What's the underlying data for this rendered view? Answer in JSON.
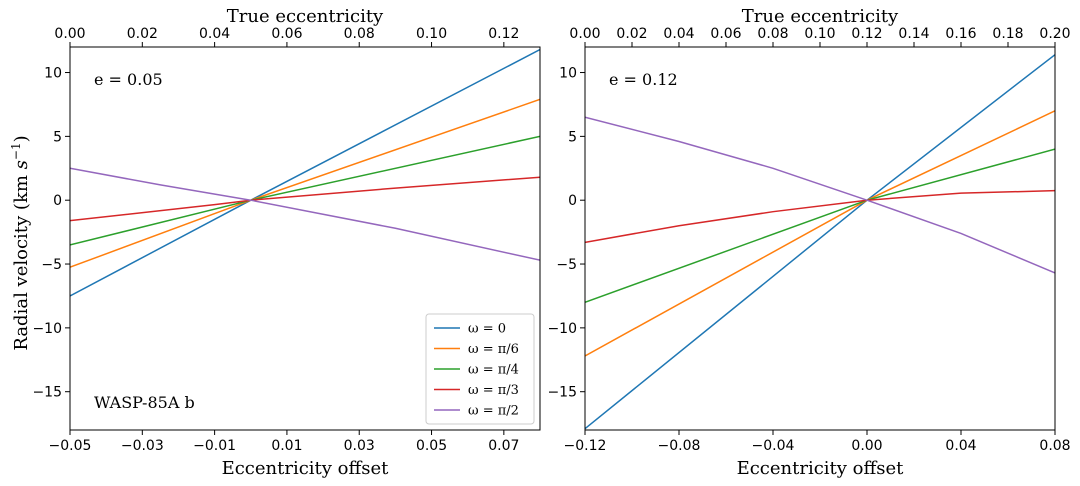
{
  "figure": {
    "ylabel_main": "Radial velocity (km ",
    "ylabel_unit": "s",
    "ylabel_exp": "−1",
    "ylabel_close": ")"
  },
  "chart_data": [
    {
      "type": "line",
      "annotation": "e = 0.05",
      "planet_label": "WASP-85A b",
      "xlabel": "Eccentricity offset",
      "top_xlabel": "True eccentricity",
      "xlim": [
        -0.05,
        0.08
      ],
      "ylim": [
        -18,
        12
      ],
      "top_xlim": [
        0.0,
        0.13
      ],
      "xticks": [
        -0.05,
        -0.03,
        -0.01,
        0.01,
        0.03,
        0.05,
        0.07
      ],
      "xtick_labels": [
        "−0.05",
        "−0.03",
        "−0.01",
        "0.01",
        "0.03",
        "0.05",
        "0.07"
      ],
      "yticks": [
        -15,
        -10,
        -5,
        0,
        5,
        10
      ],
      "ytick_labels": [
        "−15",
        "−10",
        "−5",
        "0",
        "5",
        "10"
      ],
      "top_xticks": [
        0.0,
        0.02,
        0.04,
        0.06,
        0.08,
        0.1,
        0.12
      ],
      "top_xtick_labels": [
        "0.00",
        "0.02",
        "0.04",
        "0.06",
        "0.08",
        "0.10",
        "0.12"
      ],
      "series": [
        {
          "name": "ω = 0",
          "color": "#1f77b4",
          "x": [
            -0.05,
            0.0,
            0.08
          ],
          "y": [
            -7.5,
            0,
            11.8
          ]
        },
        {
          "name": "ω = π/6",
          "color": "#ff7f0e",
          "x": [
            -0.05,
            0.0,
            0.08
          ],
          "y": [
            -5.25,
            0,
            7.9
          ]
        },
        {
          "name": "ω = π/4",
          "color": "#2ca02c",
          "x": [
            -0.05,
            0.0,
            0.08
          ],
          "y": [
            -3.5,
            0,
            5.0
          ]
        },
        {
          "name": "ω = π/3",
          "color": "#d62728",
          "x": [
            -0.05,
            -0.01,
            0.0,
            0.04,
            0.08
          ],
          "y": [
            -1.6,
            -0.35,
            0,
            0.95,
            1.8
          ]
        },
        {
          "name": "ω = π/2",
          "color": "#9467bd",
          "x": [
            -0.05,
            -0.025,
            0.0,
            0.04,
            0.08
          ],
          "y": [
            2.5,
            1.2,
            0,
            -2.2,
            -4.7
          ]
        }
      ],
      "legend": {
        "position": "lower-right",
        "entries": [
          "ω = 0",
          "ω = π/6",
          "ω = π/4",
          "ω = π/3",
          "ω = π/2"
        ]
      }
    },
    {
      "type": "line",
      "annotation": "e = 0.12",
      "xlabel": "Eccentricity offset",
      "top_xlabel": "True eccentricity",
      "xlim": [
        -0.12,
        0.08
      ],
      "ylim": [
        -18,
        12
      ],
      "top_xlim": [
        0.0,
        0.2
      ],
      "xticks": [
        -0.12,
        -0.08,
        -0.04,
        0.0,
        0.04,
        0.08
      ],
      "xtick_labels": [
        "−0.12",
        "−0.08",
        "−0.04",
        "0.00",
        "0.04",
        "0.08"
      ],
      "yticks": [
        -15,
        -10,
        -5,
        0,
        5,
        10
      ],
      "ytick_labels": [
        "−15",
        "−10",
        "−5",
        "0",
        "5",
        "10"
      ],
      "top_xticks": [
        0.0,
        0.02,
        0.04,
        0.06,
        0.08,
        0.1,
        0.12,
        0.14,
        0.16,
        0.18,
        0.2
      ],
      "top_xtick_labels": [
        "0.00",
        "0.02",
        "0.04",
        "0.06",
        "0.08",
        "0.10",
        "0.12",
        "0.14",
        "0.16",
        "0.18",
        "0.20"
      ],
      "series": [
        {
          "name": "ω = 0",
          "color": "#1f77b4",
          "x": [
            -0.12,
            0.0,
            0.08
          ],
          "y": [
            -17.9,
            0,
            11.4
          ]
        },
        {
          "name": "ω = π/6",
          "color": "#ff7f0e",
          "x": [
            -0.12,
            0.0,
            0.08
          ],
          "y": [
            -12.2,
            0,
            7.0
          ]
        },
        {
          "name": "ω = π/4",
          "color": "#2ca02c",
          "x": [
            -0.12,
            0.0,
            0.08
          ],
          "y": [
            -8.0,
            0,
            4.0
          ]
        },
        {
          "name": "ω = π/3",
          "color": "#d62728",
          "x": [
            -0.12,
            -0.08,
            -0.04,
            0.0,
            0.04,
            0.08
          ],
          "y": [
            -3.3,
            -2.0,
            -0.9,
            0,
            0.55,
            0.75
          ]
        },
        {
          "name": "ω = π/2",
          "color": "#9467bd",
          "x": [
            -0.12,
            -0.08,
            -0.04,
            0.0,
            0.04,
            0.08
          ],
          "y": [
            6.5,
            4.6,
            2.5,
            0,
            -2.6,
            -5.7
          ]
        }
      ]
    }
  ]
}
